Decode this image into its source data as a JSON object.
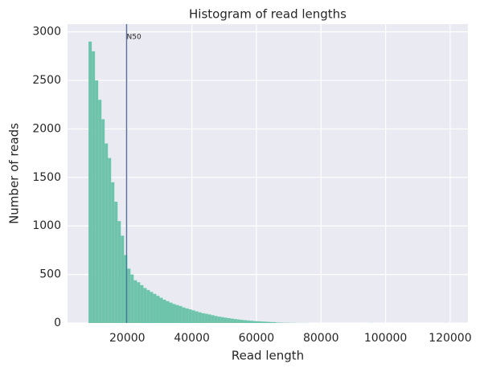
{
  "chart_data": {
    "type": "histogram",
    "title": "Histogram of read lengths",
    "x_label": "Read length",
    "y_label": "Number of reads",
    "color": "#66c2a5",
    "grid": true,
    "bins": [
      8000,
      9000,
      10000,
      11000,
      12000,
      13000,
      14000,
      15000,
      16000,
      17000,
      18000,
      19000,
      20000,
      21000,
      22000,
      23000,
      24000,
      25000,
      26000,
      27000,
      28000,
      29000,
      30000,
      31000,
      32000,
      33000,
      34000,
      35000,
      36000,
      37000,
      38000,
      39000,
      40000,
      41000,
      42000,
      43000,
      44000,
      45000,
      46000,
      47000,
      48000,
      49000,
      50000,
      51000,
      52000,
      53000,
      54000,
      55000,
      56000,
      57000,
      58000,
      59000,
      60000,
      61000,
      62000,
      63000,
      64000,
      65000,
      66000,
      67000,
      68000,
      69000,
      70000,
      71000,
      72000,
      73000,
      74000,
      75000,
      76000,
      77000,
      78000,
      79000,
      80000,
      81000,
      82000,
      83000,
      84000,
      85000,
      86000,
      87000,
      88000,
      89000,
      90000,
      91000,
      92000,
      93000,
      94000,
      95000,
      96000,
      97000,
      98000,
      99000,
      100000,
      101000,
      102000,
      103000,
      104000,
      105000,
      106000,
      107000,
      108000,
      109000,
      110000,
      111000,
      112000,
      113000,
      114000,
      115000,
      116000,
      117000,
      118000,
      119000,
      120000
    ],
    "counts": [
      2900,
      2800,
      2500,
      2300,
      2100,
      1850,
      1700,
      1450,
      1250,
      1050,
      900,
      700,
      560,
      500,
      440,
      420,
      390,
      360,
      340,
      320,
      300,
      280,
      260,
      240,
      225,
      210,
      195,
      185,
      175,
      160,
      150,
      140,
      130,
      120,
      110,
      100,
      95,
      88,
      80,
      72,
      65,
      60,
      55,
      50,
      45,
      40,
      36,
      32,
      29,
      26,
      23,
      20,
      18,
      16,
      14,
      12,
      10,
      9,
      5,
      4,
      3,
      3,
      2,
      2,
      1,
      1,
      1,
      1,
      0,
      0,
      0,
      0,
      0,
      0,
      0,
      0,
      0,
      0,
      0,
      0,
      0,
      0,
      0,
      0,
      0,
      0,
      0,
      1,
      0,
      0,
      0,
      0,
      0,
      0,
      0,
      0,
      0,
      0,
      0,
      0,
      0,
      0,
      0,
      0,
      0,
      0,
      0,
      0,
      0,
      0,
      1,
      0
    ],
    "xlim": [
      1500,
      125500
    ],
    "ylim": [
      0,
      3080
    ],
    "xticks": [
      20000,
      40000,
      60000,
      80000,
      100000,
      120000
    ],
    "yticks": [
      0,
      500,
      1000,
      1500,
      2000,
      2500,
      3000
    ],
    "annotations": [
      {
        "x": 19800,
        "label": "N50",
        "color": "#4c72b0"
      }
    ]
  }
}
